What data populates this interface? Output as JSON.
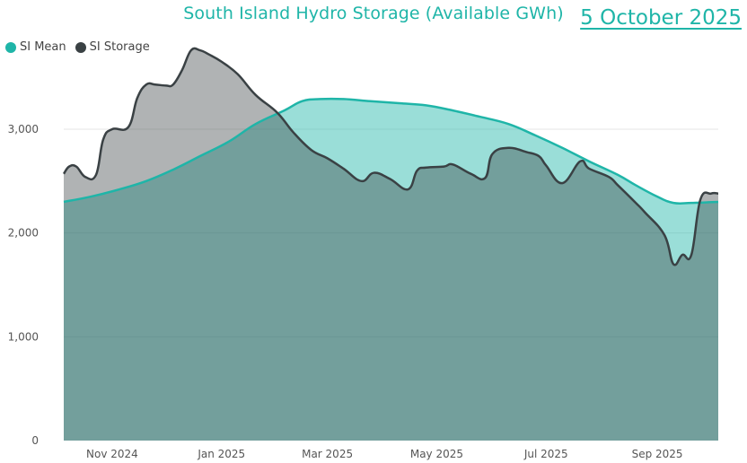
{
  "header": {
    "title": "South Island Hydro Storage (Available GWh)",
    "date": "5 October 2025"
  },
  "legend": {
    "items": [
      {
        "label": "SI Mean",
        "color": "#1fb5a8"
      },
      {
        "label": "SI Storage",
        "color": "#3a4144"
      }
    ]
  },
  "chart_data": {
    "type": "area",
    "title": "South Island Hydro Storage (Available GWh)",
    "xlabel": "",
    "ylabel": "",
    "ylim": [
      0,
      3700
    ],
    "xlim": [
      "2024-10-05",
      "2025-10-05"
    ],
    "y_ticks": [
      0,
      1000,
      2000,
      3000
    ],
    "y_tick_labels": [
      "0",
      "1,000",
      "2,000",
      "3,000"
    ],
    "x_ticks": [
      "2024-11-01",
      "2025-01-01",
      "2025-03-01",
      "2025-05-01",
      "2025-07-01",
      "2025-09-01"
    ],
    "x_tick_labels": [
      "Nov 2024",
      "Jan 2025",
      "Mar 2025",
      "May 2025",
      "Jul 2025",
      "Sep 2025"
    ],
    "grid": true,
    "legend_position": "top-left",
    "series": [
      {
        "name": "SI Mean",
        "color": "#1fb5a8",
        "x": [
          "2024-10-05",
          "2024-10-20",
          "2024-11-05",
          "2024-11-20",
          "2024-12-05",
          "2024-12-20",
          "2025-01-05",
          "2025-01-20",
          "2025-02-05",
          "2025-02-15",
          "2025-02-25",
          "2025-03-10",
          "2025-03-25",
          "2025-04-10",
          "2025-04-25",
          "2025-05-10",
          "2025-05-25",
          "2025-06-10",
          "2025-06-25",
          "2025-07-10",
          "2025-07-25",
          "2025-08-10",
          "2025-08-20",
          "2025-09-01",
          "2025-09-10",
          "2025-09-20",
          "2025-10-05"
        ],
        "values": [
          2300,
          2350,
          2420,
          2500,
          2610,
          2740,
          2880,
          3050,
          3180,
          3270,
          3290,
          3290,
          3270,
          3250,
          3230,
          3180,
          3120,
          3050,
          2940,
          2820,
          2690,
          2560,
          2460,
          2350,
          2290,
          2290,
          2300
        ]
      },
      {
        "name": "SI Storage",
        "color": "#3a4144",
        "x": [
          "2024-10-05",
          "2024-10-08",
          "2024-10-12",
          "2024-10-17",
          "2024-10-23",
          "2024-10-27",
          "2024-11-01",
          "2024-11-10",
          "2024-11-15",
          "2024-11-20",
          "2024-11-25",
          "2024-12-01",
          "2024-12-05",
          "2024-12-10",
          "2024-12-15",
          "2024-12-20",
          "2024-12-25",
          "2025-01-01",
          "2025-01-10",
          "2025-01-20",
          "2025-02-01",
          "2025-02-10",
          "2025-02-20",
          "2025-03-01",
          "2025-03-10",
          "2025-03-20",
          "2025-03-27",
          "2025-04-05",
          "2025-04-15",
          "2025-04-20",
          "2025-04-25",
          "2025-05-05",
          "2025-05-10",
          "2025-05-20",
          "2025-05-28",
          "2025-06-01",
          "2025-06-10",
          "2025-06-20",
          "2025-06-27",
          "2025-07-01",
          "2025-07-10",
          "2025-07-20",
          "2025-07-25",
          "2025-08-05",
          "2025-08-10",
          "2025-08-20",
          "2025-08-25",
          "2025-09-05",
          "2025-09-10",
          "2025-09-15",
          "2025-09-20",
          "2025-09-25",
          "2025-10-01",
          "2025-10-05"
        ],
        "values": [
          2570,
          2640,
          2640,
          2540,
          2560,
          2900,
          3000,
          3020,
          3300,
          3430,
          3430,
          3420,
          3430,
          3570,
          3760,
          3760,
          3720,
          3650,
          3530,
          3330,
          3160,
          2970,
          2800,
          2720,
          2620,
          2500,
          2580,
          2520,
          2420,
          2600,
          2630,
          2640,
          2660,
          2570,
          2530,
          2760,
          2820,
          2780,
          2740,
          2650,
          2480,
          2690,
          2620,
          2540,
          2460,
          2290,
          2200,
          1980,
          1700,
          1790,
          1790,
          2320,
          2380,
          2380
        ]
      }
    ]
  }
}
